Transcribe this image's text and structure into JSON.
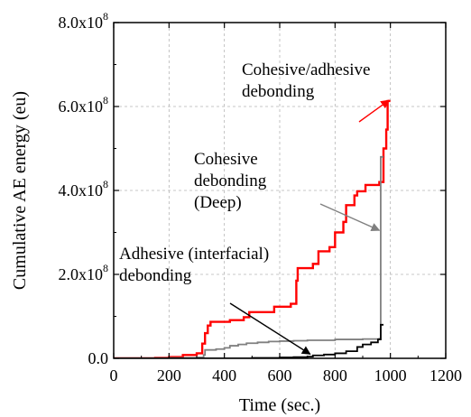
{
  "chart_data": {
    "type": "line",
    "title": "",
    "xlabel": "Time (sec.)",
    "ylabel": "Cumulative AE energy (eu)",
    "xlim": [
      0,
      1200
    ],
    "ylim": [
      0,
      800000000
    ],
    "xticks": [
      0,
      200,
      400,
      600,
      800,
      1000,
      1200
    ],
    "x_tick_labels": [
      "0",
      "200",
      "400",
      "600",
      "800",
      "1000",
      "1200"
    ],
    "yticks": [
      {
        "value": 0,
        "mantissa": "0.0",
        "base": "",
        "exponent": ""
      },
      {
        "value": 200000000,
        "mantissa": "2.0x10",
        "base": "",
        "exponent": "8"
      },
      {
        "value": 400000000,
        "mantissa": "4.0x10",
        "base": "",
        "exponent": "8"
      },
      {
        "value": 600000000,
        "mantissa": "6.0x10",
        "base": "",
        "exponent": "8"
      },
      {
        "value": 800000000,
        "mantissa": "8.0x10",
        "base": "",
        "exponent": "8"
      }
    ],
    "grid": true,
    "series": [
      {
        "color": "#ff0000",
        "step": true,
        "points": [
          [
            0,
            0
          ],
          [
            150,
            1000000
          ],
          [
            200,
            3000000
          ],
          [
            250,
            8000000
          ],
          [
            300,
            12000000
          ],
          [
            320,
            35000000
          ],
          [
            330,
            60000000
          ],
          [
            340,
            78000000
          ],
          [
            350,
            87000000
          ],
          [
            420,
            91000000
          ],
          [
            470,
            98000000
          ],
          [
            490,
            110000000
          ],
          [
            580,
            123000000
          ],
          [
            640,
            130000000
          ],
          [
            660,
            185000000
          ],
          [
            665,
            215000000
          ],
          [
            720,
            225000000
          ],
          [
            740,
            255000000
          ],
          [
            780,
            265000000
          ],
          [
            800,
            300000000
          ],
          [
            830,
            325000000
          ],
          [
            840,
            365000000
          ],
          [
            870,
            388000000
          ],
          [
            880,
            398000000
          ],
          [
            910,
            413000000
          ],
          [
            960,
            420000000
          ],
          [
            975,
            500000000
          ],
          [
            985,
            545000000
          ],
          [
            990,
            613000000
          ],
          [
            1000,
            613000000
          ]
        ]
      },
      {
        "color": "#808080",
        "step": true,
        "points": [
          [
            0,
            0
          ],
          [
            200,
            1000000
          ],
          [
            300,
            2000000
          ],
          [
            325,
            8000000
          ],
          [
            330,
            20000000
          ],
          [
            370,
            22000000
          ],
          [
            400,
            25000000
          ],
          [
            420,
            30000000
          ],
          [
            450,
            33000000
          ],
          [
            480,
            36000000
          ],
          [
            520,
            38000000
          ],
          [
            560,
            40000000
          ],
          [
            600,
            41000000
          ],
          [
            650,
            42000000
          ],
          [
            700,
            43000000
          ],
          [
            800,
            45000000
          ],
          [
            900,
            46000000
          ],
          [
            960,
            47000000
          ],
          [
            965,
            480000000
          ],
          [
            975,
            480000000
          ]
        ]
      },
      {
        "color": "#000000",
        "step": true,
        "points": [
          [
            0,
            0
          ],
          [
            300,
            0
          ],
          [
            500,
            1000000
          ],
          [
            600,
            2000000
          ],
          [
            650,
            3000000
          ],
          [
            700,
            4000000
          ],
          [
            720,
            7000000
          ],
          [
            760,
            9000000
          ],
          [
            800,
            12000000
          ],
          [
            840,
            17000000
          ],
          [
            880,
            27000000
          ],
          [
            900,
            33000000
          ],
          [
            930,
            38000000
          ],
          [
            955,
            45000000
          ],
          [
            965,
            80000000
          ],
          [
            975,
            80000000
          ]
        ]
      }
    ],
    "annotations": [
      {
        "lines": [
          "Cohesive/adhesive",
          "debonding"
        ],
        "color": "#ff0000",
        "arrow_to": [
          995,
          615000000
        ]
      },
      {
        "lines": [
          "Cohesive",
          "debonding",
          "(Deep)"
        ],
        "color": "#808080",
        "arrow_to": [
          960,
          305000000
        ]
      },
      {
        "lines": [
          "Adhesive (interfacial)",
          "debonding"
        ],
        "color": "#000000",
        "arrow_to": [
          710,
          10000000
        ]
      }
    ]
  }
}
